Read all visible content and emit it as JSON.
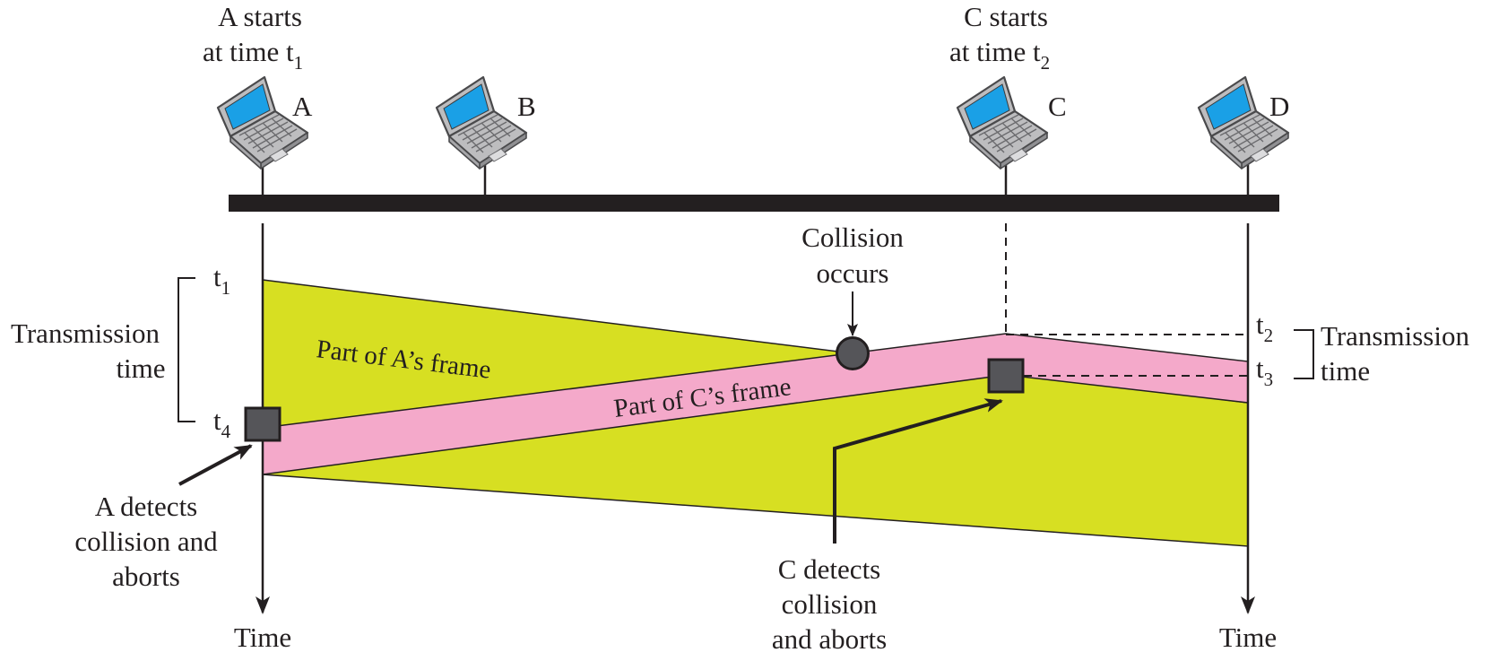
{
  "colors": {
    "frame_a": "#d7df22",
    "frame_c": "#f4a9ca",
    "bus": "#231f20",
    "screen": "#1aa0e6",
    "marker": "#555559"
  },
  "stations": [
    {
      "id": "A",
      "label": "A",
      "icon": "laptop-icon"
    },
    {
      "id": "B",
      "label": "B",
      "icon": "laptop-icon"
    },
    {
      "id": "C",
      "label": "C",
      "icon": "laptop-icon"
    },
    {
      "id": "D",
      "label": "D",
      "icon": "laptop-icon"
    }
  ],
  "start_a": {
    "line1": "A starts",
    "line2": "at time t",
    "sub": "1"
  },
  "start_c": {
    "line1": "C starts",
    "line2": "at time t",
    "sub": "2"
  },
  "ticks": {
    "t1": {
      "base": "t",
      "sub": "1"
    },
    "t4": {
      "base": "t",
      "sub": "4"
    },
    "t2": {
      "base": "t",
      "sub": "2"
    },
    "t3": {
      "base": "t",
      "sub": "3"
    }
  },
  "transmission_left": {
    "line1": "Transmission",
    "line2": "time"
  },
  "transmission_right": {
    "line1": "Transmission",
    "line2": "time"
  },
  "collision": {
    "line1": "Collision",
    "line2": "occurs"
  },
  "frame_a_label": "Part of A’s frame",
  "frame_c_label": "Part of C’s frame",
  "a_detects": {
    "line1": "A detects",
    "line2": "collision and",
    "line3": "aborts"
  },
  "c_detects": {
    "line1": "C detects",
    "line2": "collision",
    "line3": "and aborts"
  },
  "time_left": "Time",
  "time_right": "Time"
}
